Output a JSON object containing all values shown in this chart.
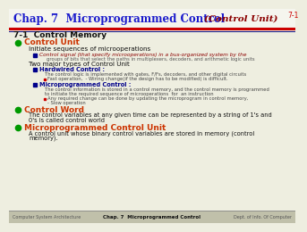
{
  "title_main": "Chap. 7  Microprogrammed Control",
  "title_italic": "(Control Unit)",
  "title_num": "7-1",
  "bg_color": "#eeeee0",
  "title_color": "#1a1acc",
  "italic_color": "#8b0000",
  "bullet_green": "#009900",
  "sub_blue": "#00008b",
  "body_color": "#111111",
  "gray_color": "#555555",
  "red_color": "#cc0000",
  "footer_bg": "#c0c0aa",
  "footer_line_color": "#888888",
  "section_title": "7-1  Control Memory",
  "footer_left": "Computer System Architecture",
  "footer_center": "Chap. 7  Microprogrammed Control",
  "footer_right": "Dept. of Info. Of Computer"
}
